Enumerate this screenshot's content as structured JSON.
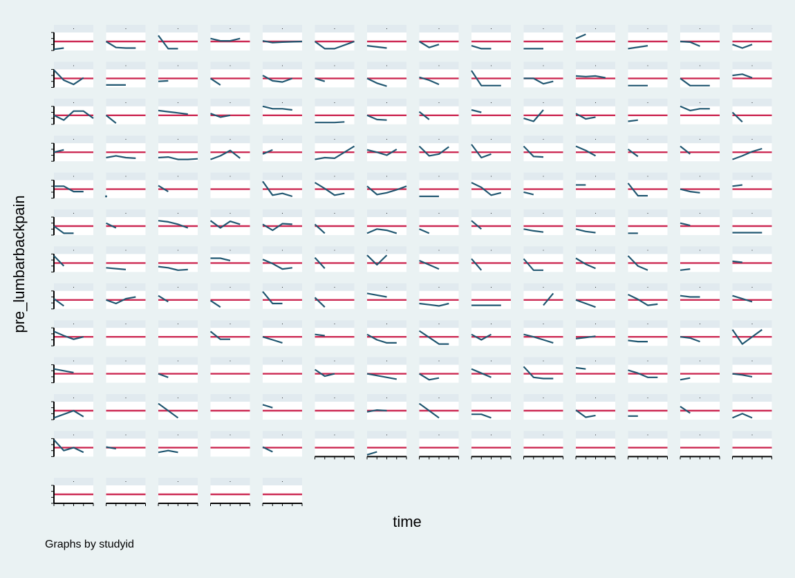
{
  "chart_data": {
    "type": "line",
    "xlabel": "time",
    "ylabel": "pre_lumbarbackpain",
    "note": "Graphs by studyid",
    "panel_title": ".",
    "panel_count": 173,
    "columns": 14,
    "x": [
      1,
      2,
      3,
      4,
      5
    ],
    "xlim": [
      1,
      5
    ],
    "ylim": [
      0,
      3
    ],
    "reference_line": {
      "y": 1.5,
      "color": "#cc2852"
    },
    "colors": {
      "series": "#1f5670",
      "panel_title_bar": "#e1eaef",
      "plot_background": "#ffffff",
      "axis": "#000000"
    },
    "panels": [
      [
        0.2,
        0.4,
        null,
        null,
        null
      ],
      [
        1.5,
        0.5,
        0.4,
        0.4,
        null
      ],
      [
        2.5,
        0.3,
        0.3,
        null,
        null
      ],
      [
        2.0,
        1.6,
        1.6,
        2.0,
        null
      ],
      [
        1.6,
        1.3,
        1.4,
        null,
        1.5
      ],
      [
        1.5,
        0.3,
        0.3,
        null,
        1.5
      ],
      [
        0.8,
        null,
        0.4,
        null,
        null
      ],
      [
        1.5,
        0.5,
        1.0,
        null,
        null
      ],
      [
        0.8,
        0.3,
        0.3,
        null,
        null
      ],
      [
        0.3,
        null,
        0.3,
        null,
        null
      ],
      [
        2.0,
        2.7,
        null,
        null,
        null
      ],
      [
        0.3,
        null,
        0.8,
        null,
        null
      ],
      [
        1.5,
        1.4,
        0.7,
        null,
        null
      ],
      [
        1.0,
        0.4,
        1.0,
        null,
        null
      ],
      [
        2.9,
        1.2,
        0.5,
        1.6,
        null
      ],
      [
        0.4,
        null,
        0.4,
        null,
        null
      ],
      [
        1.0,
        1.1,
        null,
        null,
        null
      ],
      [
        1.5,
        0.4,
        null,
        null,
        null
      ],
      [
        2.0,
        1.1,
        0.9,
        1.5,
        null
      ],
      [
        1.5,
        1.0,
        null,
        null,
        null
      ],
      [
        1.5,
        0.7,
        0.2,
        null,
        null
      ],
      [
        1.7,
        1.2,
        0.5,
        null,
        null
      ],
      [
        2.8,
        0.3,
        0.3,
        0.3,
        null
      ],
      [
        1.5,
        1.5,
        0.6,
        1.0,
        null
      ],
      [
        1.9,
        1.8,
        1.9,
        1.6,
        null
      ],
      [
        0.3,
        null,
        0.3,
        null,
        null
      ],
      [
        1.5,
        0.3,
        0.3,
        0.3,
        null
      ],
      [
        2.0,
        2.2,
        1.6,
        null,
        null
      ],
      [
        1.5,
        0.7,
        2.2,
        2.2,
        1.0
      ],
      [
        1.5,
        0.2,
        null,
        null,
        null
      ],
      [
        2.3,
        2.1,
        1.9,
        1.7,
        null
      ],
      [
        1.8,
        1.2,
        1.5,
        null,
        null
      ],
      [
        3.0,
        2.6,
        2.6,
        2.4,
        null
      ],
      [
        0.3,
        0.3,
        0.3,
        0.4,
        null
      ],
      [
        1.5,
        0.8,
        0.7,
        null,
        null
      ],
      [
        2.1,
        0.8,
        null,
        null,
        null
      ],
      [
        2.4,
        2.0,
        null,
        null,
        null
      ],
      [
        1.0,
        0.5,
        2.4,
        null,
        null
      ],
      [
        1.8,
        0.9,
        1.2,
        null,
        null
      ],
      [
        0.5,
        0.7,
        null,
        null,
        null
      ],
      [
        3.0,
        2.3,
        2.6,
        2.6,
        null
      ],
      [
        2.0,
        0.4,
        null,
        null,
        null
      ],
      [
        1.5,
        1.9,
        null,
        null,
        null
      ],
      [
        0.6,
        0.9,
        0.6,
        0.5,
        null
      ],
      [
        0.6,
        0.7,
        0.3,
        0.3,
        0.4
      ],
      [
        0.3,
        0.9,
        1.8,
        0.5,
        null
      ],
      [
        1.2,
        1.9,
        null,
        null,
        null
      ],
      [
        0.3,
        0.6,
        0.5,
        1.5,
        2.5
      ],
      [
        1.9,
        1.5,
        1.0,
        2.0,
        null
      ],
      [
        2.5,
        0.9,
        1.2,
        2.4,
        null
      ],
      [
        2.8,
        0.6,
        1.2,
        null,
        null
      ],
      [
        2.5,
        0.8,
        0.7,
        null,
        null
      ],
      [
        2.5,
        1.8,
        0.9,
        null,
        null
      ],
      [
        2.0,
        0.8,
        null,
        null,
        null
      ],
      [
        2.5,
        1.2,
        null,
        null,
        null
      ],
      [
        0.3,
        0.9,
        1.6,
        2.1,
        null
      ],
      [
        2.0,
        2.0,
        1.1,
        1.1,
        null
      ],
      [
        0.3,
        null,
        null,
        null,
        null
      ],
      [
        2.1,
        1.1,
        null,
        null,
        null
      ],
      [
        null,
        null,
        null,
        null,
        null
      ],
      [
        2.8,
        0.5,
        0.8,
        0.3,
        null
      ],
      [
        2.6,
        1.6,
        0.5,
        0.8,
        null
      ],
      [
        2.0,
        0.6,
        0.9,
        1.4,
        2.0
      ],
      [
        0.3,
        0.3,
        0.3,
        null,
        null
      ],
      [
        2.6,
        1.8,
        0.5,
        0.9,
        null
      ],
      [
        1.0,
        0.6,
        null,
        null,
        null
      ],
      [
        2.2,
        2.2,
        null,
        null,
        null
      ],
      [
        2.5,
        0.4,
        0.4,
        null,
        null
      ],
      [
        1.5,
        1.1,
        0.9,
        null,
        null
      ],
      [
        2.0,
        2.2,
        null,
        null,
        null
      ],
      [
        1.5,
        0.3,
        0.3,
        null,
        null
      ],
      [
        2.0,
        1.2,
        null,
        null,
        null
      ],
      [
        2.4,
        2.2,
        1.8,
        1.2,
        null
      ],
      [
        2.4,
        1.2,
        2.3,
        1.8,
        null
      ],
      [
        1.8,
        0.8,
        1.9,
        1.8,
        null
      ],
      [
        1.8,
        0.3,
        null,
        null,
        null
      ],
      [
        0.3,
        1.0,
        0.8,
        0.3,
        null
      ],
      [
        1.0,
        0.3,
        null,
        null,
        null
      ],
      [
        2.4,
        1.0,
        null,
        null,
        null
      ],
      [
        1.0,
        0.7,
        0.5,
        null,
        null
      ],
      [
        1.0,
        0.6,
        0.4,
        null,
        null
      ],
      [
        0.3,
        0.3,
        null,
        null,
        null
      ],
      [
        2.0,
        1.6,
        null,
        null,
        null
      ],
      [
        0.4,
        0.4,
        0.4,
        0.4,
        null
      ],
      [
        2.7,
        1.0,
        null,
        null,
        null
      ],
      [
        0.7,
        null,
        0.4,
        null,
        null
      ],
      [
        0.9,
        0.7,
        0.3,
        0.4,
        null
      ],
      [
        2.3,
        2.3,
        1.9,
        null,
        null
      ],
      [
        2.1,
        1.4,
        0.5,
        0.7,
        null
      ],
      [
        2.4,
        0.6,
        null,
        null,
        null
      ],
      [
        2.8,
        1.2,
        2.8,
        null,
        null
      ],
      [
        1.9,
        1.2,
        0.5,
        null,
        null
      ],
      [
        2.2,
        0.3,
        null,
        null,
        null
      ],
      [
        2.2,
        0.3,
        0.3,
        null,
        null
      ],
      [
        2.3,
        1.3,
        0.6,
        null,
        null
      ],
      [
        2.7,
        1.0,
        0.3,
        null,
        null
      ],
      [
        0.3,
        0.5,
        null,
        null,
        null
      ],
      [
        1.8,
        1.6,
        null,
        null,
        null
      ],
      [
        1.7,
        0.5,
        null,
        null,
        null
      ],
      [
        1.5,
        0.9,
        1.7,
        2.0,
        null
      ],
      [
        2.2,
        1.2,
        null,
        null,
        null
      ],
      [
        1.4,
        0.3,
        null,
        null,
        null
      ],
      [
        2.9,
        0.9,
        0.9,
        null,
        null
      ],
      [
        1.9,
        0.3,
        null,
        null,
        null
      ],
      [
        2.6,
        2.3,
        2.0,
        null,
        null
      ],
      [
        0.9,
        0.7,
        0.5,
        0.9,
        null
      ],
      [
        0.6,
        0.6,
        0.6,
        0.6,
        null
      ],
      [
        null,
        null,
        0.6,
        2.6,
        null
      ],
      [
        1.5,
        0.9,
        0.3,
        null,
        null
      ],
      [
        2.4,
        1.6,
        0.6,
        0.8,
        null
      ],
      [
        2.2,
        2.0,
        2.0,
        null,
        null
      ],
      [
        2.2,
        1.7,
        1.2,
        null,
        null
      ],
      [
        2.4,
        1.7,
        1.1,
        1.5,
        null
      ],
      [
        null,
        null,
        null,
        null,
        null
      ],
      [
        null,
        null,
        null,
        null,
        null
      ],
      [
        2.4,
        1.1,
        1.1,
        null,
        null
      ],
      [
        1.5,
        1.0,
        0.5,
        null,
        null
      ],
      [
        1.9,
        1.7,
        null,
        null,
        null
      ],
      [
        1.9,
        1.0,
        0.5,
        0.5,
        null
      ],
      [
        2.5,
        1.4,
        0.3,
        0.3,
        null
      ],
      [
        1.9,
        1.0,
        1.9,
        null,
        null
      ],
      [
        1.9,
        1.5,
        1.0,
        0.5,
        null
      ],
      [
        1.2,
        1.4,
        1.6,
        null,
        null
      ],
      [
        0.9,
        0.7,
        0.7,
        null,
        null
      ],
      [
        1.5,
        1.3,
        0.7,
        null,
        null
      ],
      [
        2.7,
        0.3,
        1.5,
        2.7,
        null
      ],
      [
        2.3,
        2.0,
        1.7,
        null,
        null
      ],
      [
        null,
        null,
        null,
        null,
        null
      ],
      [
        1.5,
        0.9,
        null,
        null,
        null
      ],
      [
        null,
        null,
        null,
        null,
        null
      ],
      [
        null,
        null,
        null,
        null,
        null
      ],
      [
        2.2,
        1.1,
        1.5,
        null,
        null
      ],
      [
        1.5,
        1.2,
        0.9,
        0.6,
        null
      ],
      [
        1.5,
        0.5,
        0.8,
        null,
        null
      ],
      [
        2.3,
        1.6,
        0.9,
        null,
        null
      ],
      [
        2.7,
        0.9,
        0.7,
        0.7,
        null
      ],
      [
        2.5,
        2.3,
        null,
        null,
        null
      ],
      [
        2.1,
        1.6,
        0.9,
        0.9,
        null
      ],
      [
        0.5,
        0.8,
        null,
        null,
        null
      ],
      [
        1.5,
        1.3,
        1.0,
        null,
        null
      ],
      [
        0.3,
        0.9,
        1.5,
        0.5,
        null
      ],
      [
        null,
        null,
        null,
        null,
        null
      ],
      [
        2.7,
        1.5,
        0.3,
        null,
        null
      ],
      [
        null,
        null,
        null,
        null,
        null
      ],
      [
        2.5,
        2.0,
        null,
        null,
        null
      ],
      [
        null,
        null,
        null,
        null,
        null
      ],
      [
        1.3,
        1.6,
        1.5,
        null,
        null
      ],
      [
        2.7,
        1.5,
        0.3,
        null,
        null
      ],
      [
        0.9,
        0.9,
        0.3,
        null,
        null
      ],
      [
        null,
        null,
        null,
        null,
        null
      ],
      [
        1.6,
        0.4,
        0.7,
        null,
        null
      ],
      [
        0.6,
        0.6,
        null,
        null,
        null
      ],
      [
        2.2,
        1.1,
        null,
        null,
        null
      ],
      [
        0.3,
        1.0,
        0.3,
        null,
        null
      ],
      [
        2.8,
        1.0,
        1.5,
        0.7,
        null
      ],
      [
        1.6,
        1.3,
        null,
        null,
        null
      ],
      [
        0.7,
        1.0,
        0.7,
        null,
        null
      ],
      [
        null,
        null,
        null,
        null,
        null
      ],
      [
        1.6,
        0.8,
        null,
        null,
        null
      ],
      [
        null,
        null,
        null,
        null,
        null
      ],
      [
        0.3,
        0.8,
        null,
        null,
        null
      ],
      [
        null,
        null,
        null,
        null,
        null
      ],
      [
        null,
        null,
        null,
        null,
        null
      ],
      [
        null,
        null,
        null,
        null,
        null
      ],
      [
        null,
        null,
        null,
        null,
        null
      ],
      [
        null,
        null,
        null,
        null,
        null
      ],
      [
        null,
        null,
        null,
        null,
        null
      ],
      [
        null,
        null,
        null,
        null,
        null
      ],
      [
        null,
        null,
        null,
        null,
        null
      ],
      [
        null,
        null,
        null,
        null,
        null
      ],
      [
        null,
        null,
        null,
        null,
        null
      ],
      [
        null,
        null,
        null,
        null,
        null
      ],
      [
        null,
        null,
        null,
        null,
        null
      ]
    ]
  }
}
